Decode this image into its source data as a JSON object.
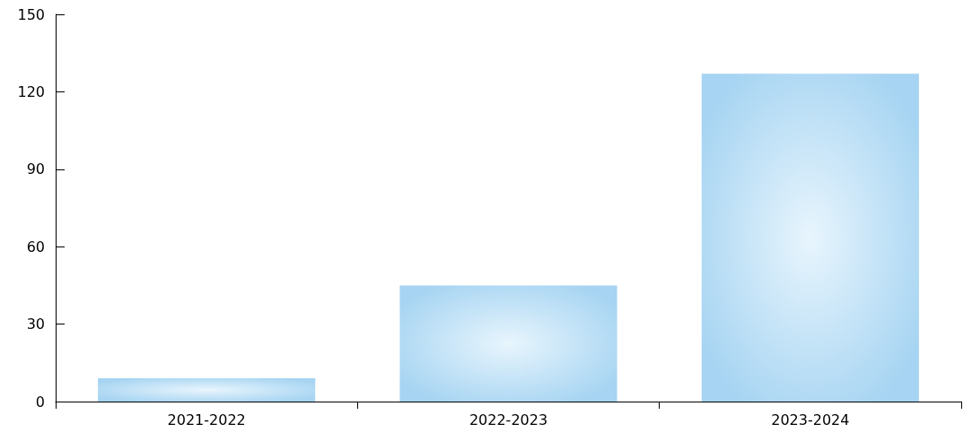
{
  "chart_data": {
    "type": "bar",
    "categories": [
      "2021-2022",
      "2022-2023",
      "2023-2024"
    ],
    "values": [
      9,
      45,
      127
    ],
    "color": "#a6d4f2",
    "ylim": [
      0,
      150
    ],
    "yticks": [
      0,
      30,
      60,
      90,
      120,
      150
    ],
    "grid": false
  }
}
